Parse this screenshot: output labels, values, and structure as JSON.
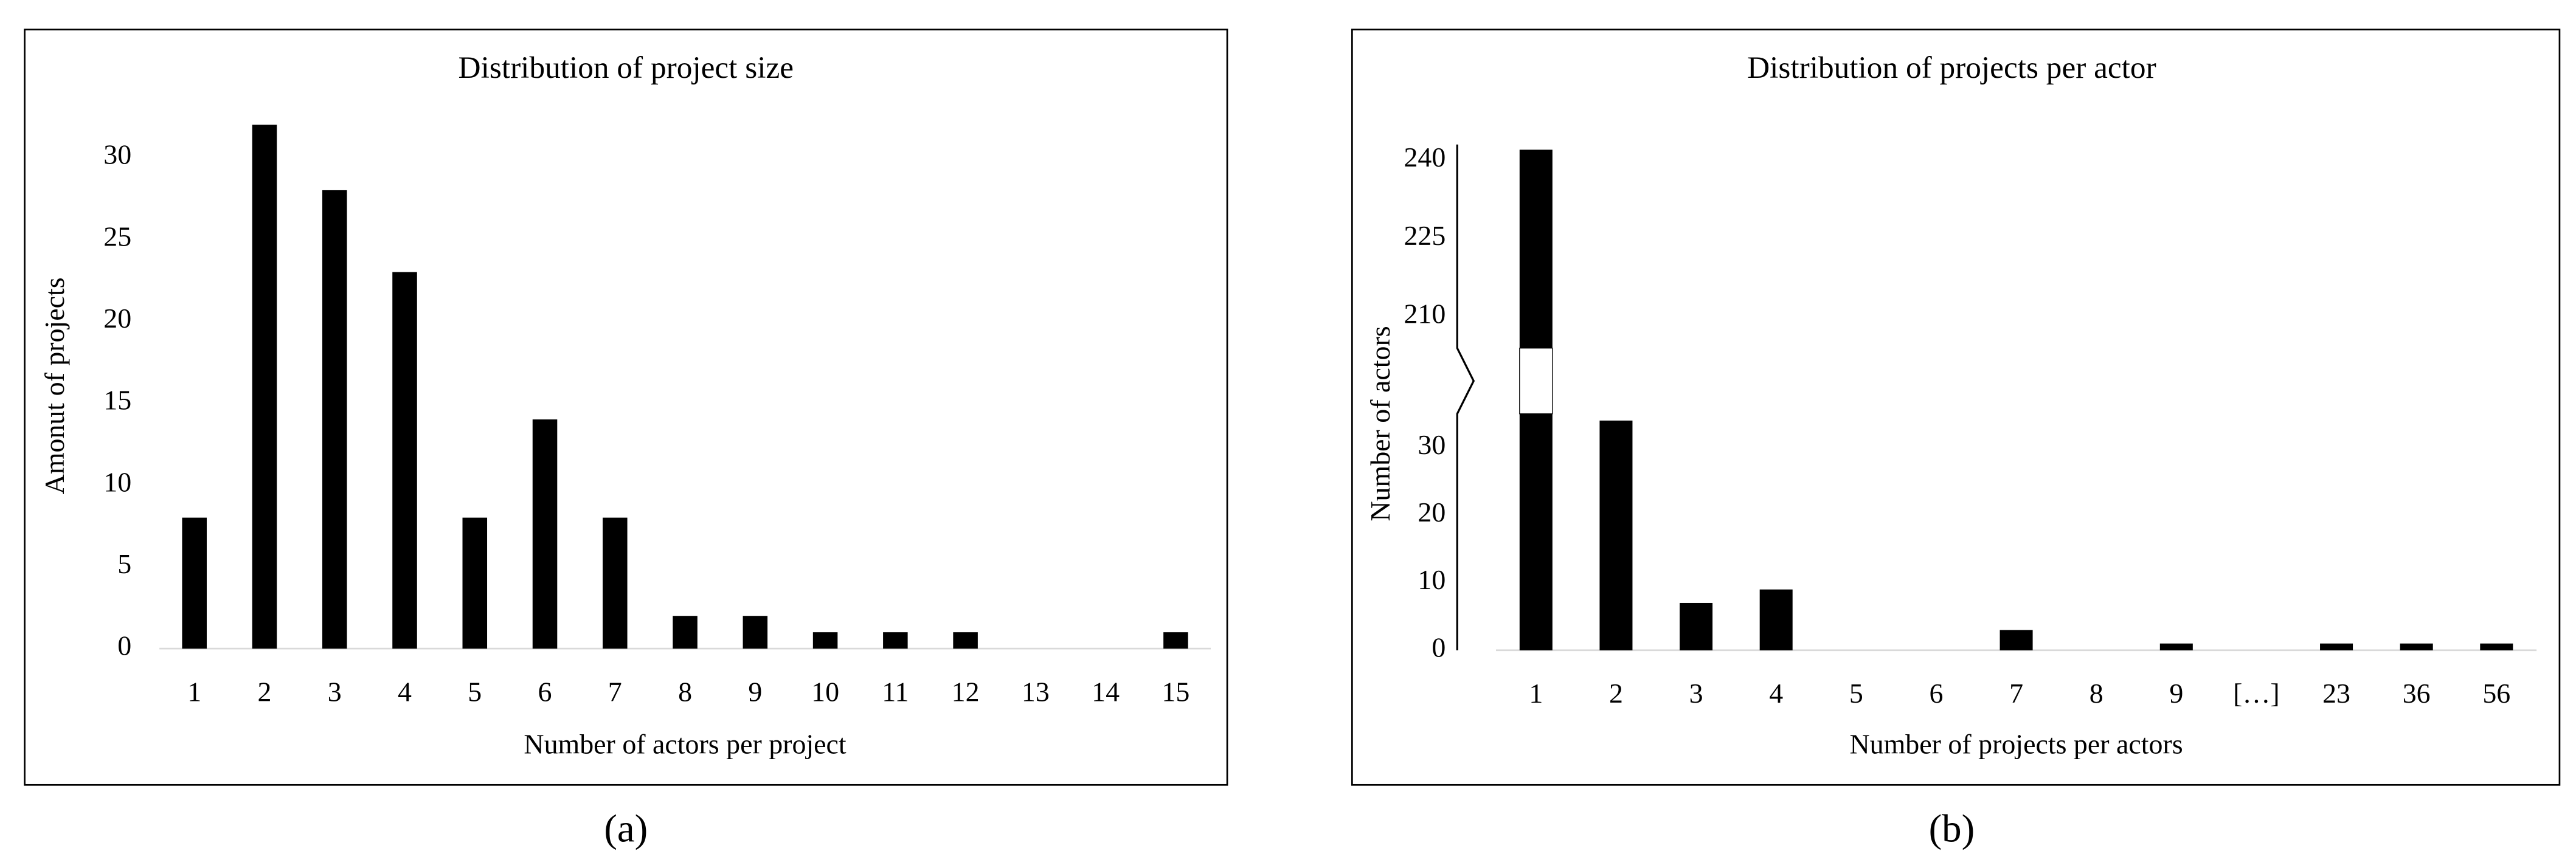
{
  "chart_data": [
    {
      "type": "bar",
      "title": "Distribution of project size",
      "x_label": "Number of actors per project",
      "y_label": "Amonut of projects",
      "categories": [
        "1",
        "2",
        "3",
        "4",
        "5",
        "6",
        "7",
        "8",
        "9",
        "10",
        "11",
        "12",
        "13",
        "14",
        "15"
      ],
      "values": [
        8,
        32,
        28,
        23,
        8,
        14,
        8,
        2,
        2,
        1,
        1,
        1,
        0,
        0,
        1
      ],
      "color": "#000000",
      "ylim": [
        0,
        33
      ],
      "yticks": [
        0,
        5,
        10,
        15,
        20,
        25,
        30
      ],
      "panel_label": "(a)"
    },
    {
      "type": "bar",
      "title": "Distribution of projects per actor",
      "x_label": "Number of projects per actors",
      "y_label": "Number of actors",
      "categories": [
        "1",
        "2",
        "3",
        "4",
        "5",
        "6",
        "7",
        "8",
        "9",
        "[…]",
        "23",
        "36",
        "56"
      ],
      "values": [
        242,
        34,
        7,
        9,
        0,
        0,
        3,
        0,
        1,
        null,
        1,
        1,
        1
      ],
      "color": "#000000",
      "ylim": [
        0,
        243
      ],
      "axis_break": [
        35,
        204
      ],
      "yticks": [
        0,
        10,
        20,
        30,
        210,
        225,
        240
      ],
      "panel_label": "(b)"
    }
  ]
}
